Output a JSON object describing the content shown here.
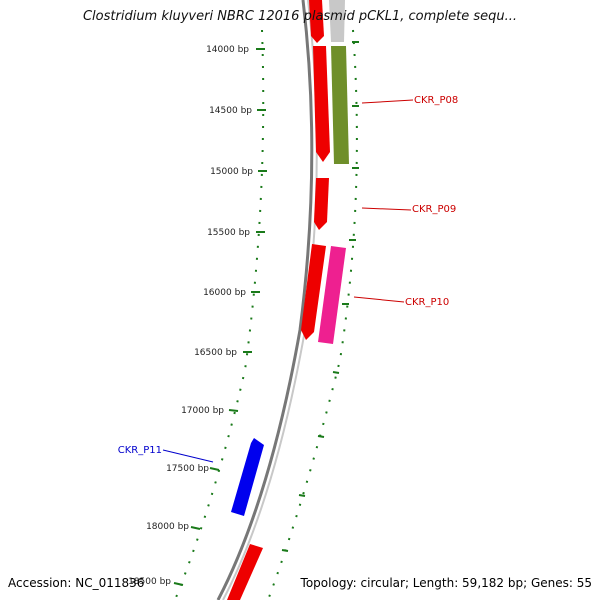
{
  "title": "Clostridium kluyveri NBRC 12016 plasmid pCKL1, complete sequ...",
  "footer": {
    "accession": "Accession: NC_011836",
    "summary": "Topology: circular; Length: 59,182 bp; Genes: 55"
  },
  "ticks": [
    {
      "label": "14000 bp"
    },
    {
      "label": "14500 bp"
    },
    {
      "label": "15000 bp"
    },
    {
      "label": "15500 bp"
    },
    {
      "label": "16000 bp"
    },
    {
      "label": "16500 bp"
    },
    {
      "label": "17000 bp"
    },
    {
      "label": "17500 bp"
    },
    {
      "label": "18000 bp"
    },
    {
      "label": "18500 bp"
    }
  ],
  "gene_labels": [
    {
      "text": "CKR_P08",
      "color": "#cc0000"
    },
    {
      "text": "CKR_P09",
      "color": "#cc0000"
    },
    {
      "text": "CKR_P10",
      "color": "#cc0000"
    },
    {
      "text": "CKR_P11",
      "color": "#0000cc"
    }
  ],
  "colors": {
    "backbone": "#888888",
    "tick": "#1a7a1a",
    "cds": "#ee0000",
    "cds_olive": "#6f8f2a",
    "cds_pink": "#ee2090",
    "cds_blue": "#0000ee",
    "cds_grey": "#c8c8c8"
  }
}
